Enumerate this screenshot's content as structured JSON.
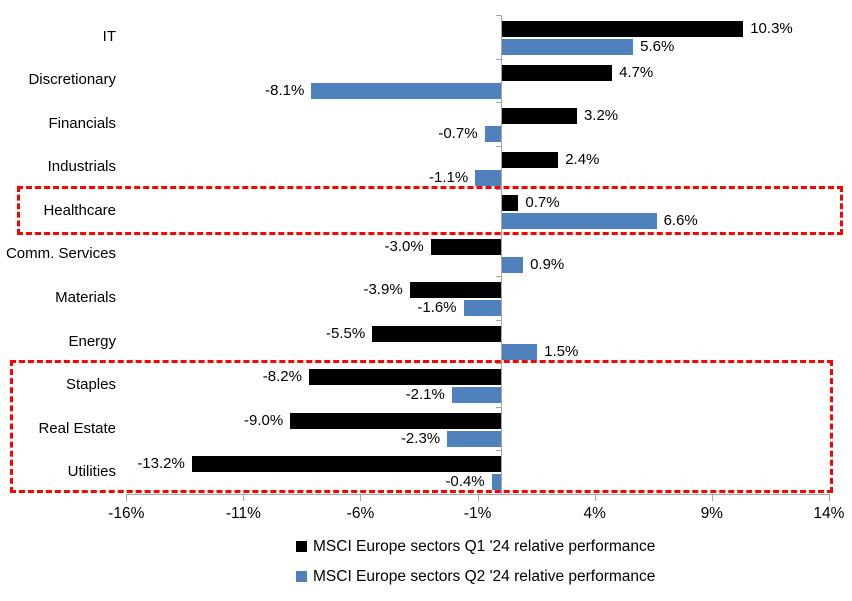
{
  "chart_data": {
    "type": "bar",
    "orientation": "horizontal",
    "title": "",
    "categories": [
      "IT",
      "Discretionary",
      "Financials",
      "Industrials",
      "Healthcare",
      "Comm. Services",
      "Materials",
      "Energy",
      "Staples",
      "Real Estate",
      "Utilities"
    ],
    "series": [
      {
        "name": "MSCI Europe sectors Q1 '24 relative performance",
        "color": "#000000",
        "values": [
          10.3,
          4.7,
          3.2,
          2.4,
          0.7,
          -3.0,
          -3.9,
          -5.5,
          -8.2,
          -9.0,
          -13.2
        ],
        "labels": [
          "10.3%",
          "4.7%",
          "3.2%",
          "2.4%",
          "0.7%",
          "-3.0%",
          "-3.9%",
          "-5.5%",
          "-8.2%",
          "-9.0%",
          "-13.2%"
        ]
      },
      {
        "name": "MSCI Europe sectors Q2 '24 relative performance",
        "color": "#4f81bd",
        "values": [
          5.6,
          -8.1,
          -0.7,
          -1.1,
          6.6,
          0.9,
          -1.6,
          1.5,
          -2.1,
          -2.3,
          -0.4
        ],
        "labels": [
          "5.6%",
          "-8.1%",
          "-0.7%",
          "-1.1%",
          "6.6%",
          "0.9%",
          "-1.6%",
          "1.5%",
          "-2.1%",
          "-2.3%",
          "-0.4%"
        ]
      }
    ],
    "x_ticks": [
      {
        "value": -16,
        "label": "-16%"
      },
      {
        "value": -11,
        "label": "-11%"
      },
      {
        "value": -6,
        "label": "-6%"
      },
      {
        "value": -1,
        "label": "-1%"
      },
      {
        "value": 4,
        "label": "4%"
      },
      {
        "value": 9,
        "label": "9%"
      },
      {
        "value": 14,
        "label": "14%"
      }
    ],
    "xlim": [
      -16,
      14
    ],
    "grid": false,
    "legend_position": "bottom",
    "axis_color": "#a6a6a6",
    "highlight_color": "#ff0000",
    "highlight_boxes": [
      {
        "name": "healthcare-highlight",
        "start_category": "Healthcare",
        "end_category": "Healthcare"
      },
      {
        "name": "staples-real-estate-utilities-highlight",
        "start_category": "Staples",
        "end_category": "Utilities"
      }
    ]
  }
}
